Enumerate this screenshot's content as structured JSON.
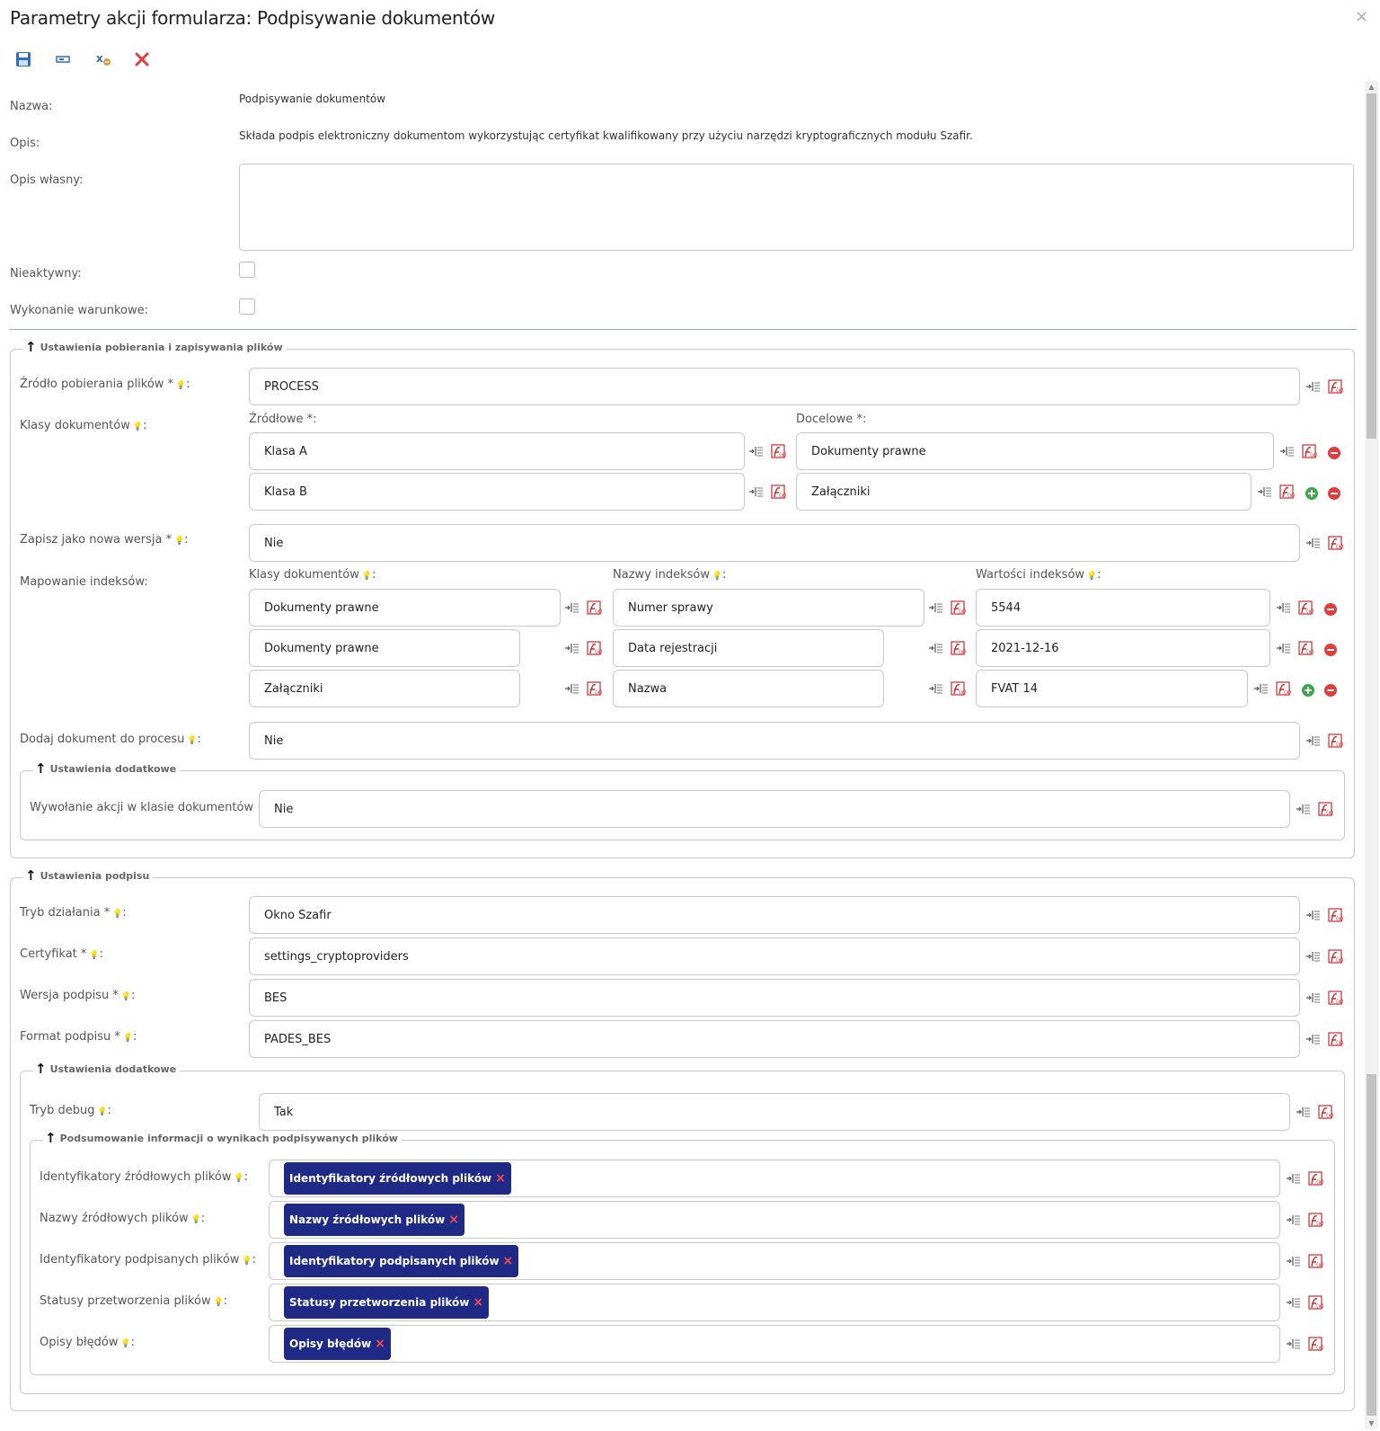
{
  "window": {
    "title": "Parametry akcji formularza: Podpisywanie dokumentów",
    "close_glyph": "×"
  },
  "toolbar": {
    "icons": [
      "save-icon",
      "field-icon",
      "variables-icon",
      "delete-icon"
    ]
  },
  "icons": {
    "insert": "insert-field-icon",
    "expression": "expression-icon",
    "add": "add-icon",
    "remove": "remove-icon",
    "hint": "bulb-icon",
    "collapse": "collapse-arrow-icon"
  },
  "colors": {
    "tag_bg": "#1e2a86",
    "tag_x": "#ff4b4b",
    "remove": "#e23c3c",
    "add": "#3aa84a",
    "save": "#2f6fbd"
  },
  "general": {
    "name_label": "Nazwa:",
    "name_value": "Podpisywanie dokumentów",
    "desc_label": "Opis:",
    "desc_value": "Składa podpis elektroniczny dokumentom wykorzystując certyfikat kwalifikowany przy użyciu narzędzi kryptograficznych modułu Szafir.",
    "own_desc_label": "Opis własny:",
    "own_desc_value": "",
    "inactive_label": "Nieaktywny:",
    "conditional_label": "Wykonanie warunkowe:"
  },
  "files": {
    "legend": "Ustawienia pobierania i zapisywania plików",
    "source_label": "Źródło pobierania plików *",
    "source_value": "PROCESS",
    "classes_label": "Klasy dokumentów",
    "src_header": "Źródłowe *:",
    "dst_header": "Docelowe *:",
    "class_rows": [
      {
        "src": "Klasa A",
        "dst": "Dokumenty prawne"
      },
      {
        "src": "Klasa B",
        "dst": "Załączniki"
      }
    ],
    "new_version_label": "Zapisz jako nowa wersja *",
    "new_version_value": "Nie",
    "mapping_label": "Mapowanie indeksów:",
    "map_headers": [
      "Klasy dokumentów",
      "Nazwy indeksów",
      "Wartości indeksów"
    ],
    "map_rows": [
      {
        "cls": "Dokumenty prawne",
        "name": "Numer sprawy",
        "value": "5544"
      },
      {
        "cls": "Dokumenty prawne",
        "name": "Data rejestracji",
        "value": "2021-12-16"
      },
      {
        "cls": "Załączniki",
        "name": "Nazwa",
        "value": "FVAT 14"
      }
    ],
    "add_doc_label": "Dodaj dokument do procesu",
    "add_doc_value": "Nie",
    "extra_legend": "Ustawienia dodatkowe",
    "action_label": "Wywołanie akcji w klasie dokumentów",
    "action_value": "Nie"
  },
  "signature": {
    "legend": "Ustawienia podpisu",
    "mode_label": "Tryb działania *",
    "mode_value": "Okno Szafir",
    "cert_label": "Certyfikat *",
    "cert_value": "settings_cryptoproviders",
    "version_label": "Wersja podpisu *",
    "version_value": "BES",
    "format_label": "Format podpisu *",
    "format_value": "PADES_BES",
    "extra_legend": "Ustawienia dodatkowe",
    "debug_label": "Tryb debug",
    "debug_value": "Tak",
    "summary_legend": "Podsumowanie informacji o wynikach podpisywanych plików",
    "summary_rows": [
      {
        "label": "Identyfikatory źródłowych plików",
        "tag": "Identyfikatory źródłowych plików"
      },
      {
        "label": "Nazwy źródłowych plików",
        "tag": "Nazwy źródłowych plików"
      },
      {
        "label": "Identyfikatory podpisanych plików",
        "tag": "Identyfikatory podpisanych plików"
      },
      {
        "label": "Statusy przetworzenia plików",
        "tag": "Statusy przetworzenia plików"
      },
      {
        "label": "Opisy błędów",
        "tag": "Opisy błędów"
      }
    ]
  }
}
